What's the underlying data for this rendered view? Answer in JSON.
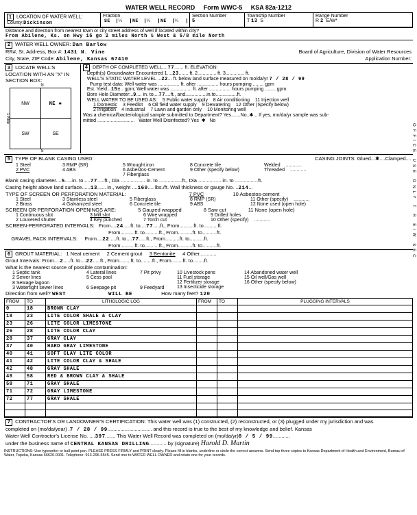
{
  "form": {
    "title": "WATER WELL RECORD",
    "form_no": "Form WWC-5",
    "ksa": "KSA 82a-1212"
  },
  "loc": {
    "county": "Dickinson",
    "fraction": [
      "SE",
      "¼",
      "NE",
      "¼",
      "NE",
      "¼"
    ],
    "section": "5",
    "township": "13",
    "township_dir": "S",
    "range": "2",
    "range_dir": "E/W*",
    "distance": "From Abilene, Ks. on Hwy 15 go 2 miles North ½ West & 5/8 mile North"
  },
  "owner": {
    "name": "Dan Barlow",
    "address": "1431 N. Vine",
    "city": "Abilene, Kansas  67410",
    "board": "Board of Agriculture, Division of Water Resources",
    "app_no": ""
  },
  "section3": {
    "mark": "NE ✱",
    "n": "N",
    "s": "S",
    "mile_label": "1 Mile"
  },
  "depth": {
    "completed": "77",
    "groundwater": "23",
    "gw_ft": "3",
    "static": "22",
    "static_date": "7 / 28 / 99",
    "est_yield": "15±",
    "bore_dia": "9",
    "bore_to": "77"
  },
  "well_use": [
    "1 Domestic",
    "3 Feedlot",
    "6 Oil field water supply",
    "9 Dewatering",
    "12 Other (Specify below)",
    "2 Irrigation",
    "4 Industrial",
    "7 Lawn and garden only",
    "10 Monitoring well"
  ],
  "well_use_header": [
    "5 Public water supply",
    "8 Air conditioning",
    "11 Injection well"
  ],
  "chem_sample": {
    "submitted": "No",
    "disinfected": "Yes ✱"
  },
  "casing": {
    "types": [
      "1 Steel",
      "3 RMP (SR)",
      "5 Wrought iron",
      "8 Concrete tile",
      "2 PVC",
      "4 ABS",
      "6 Asbestos-Cement",
      "9 Other (specify below)",
      "",
      "",
      "7 Fiberglass",
      ""
    ],
    "joints": "Glued...✱....Clamped",
    "joints2": "Welded",
    "joints3": "Threaded",
    "blank_dia": "5",
    "blank_to": "77",
    "height_above": "13",
    "weight": "160",
    "gauge": "214"
  },
  "screen_mat": [
    "1 Steel",
    "3 Stainless steel",
    "5 Fiberglass",
    "8 RMP (SR)",
    "11 Other (specify)",
    "2 Brass",
    "4 Galvanized steel",
    "6 Concrete tile",
    "9 ABS",
    "12 None used (open hole)"
  ],
  "screen_mat_header": [
    "7 PVC",
    "10 Asbestos-cement"
  ],
  "openings": [
    "1 Continuous slot",
    "3 Mill slot",
    "2 Louvered shutter",
    "4 Key punched"
  ],
  "openings2": [
    "5 Gauzed wrapped",
    "8 Saw cut",
    "11 None (open hole)",
    "6 Wire wrapped",
    "9 Drilled holes",
    "",
    "7 Torch cut",
    "10 Other (specify)",
    ""
  ],
  "perforated": {
    "from1": "24",
    "to1": "77",
    "gp_from": "22",
    "gp_to": "77"
  },
  "grout": {
    "types": [
      "1 Neat cement",
      "2 Cement grout",
      "3 Bentonite",
      "4 Other"
    ],
    "from": "2",
    "to": "22"
  },
  "contam": [
    "1 Septic tank",
    "4 Lateral lines",
    "7 Pit privy",
    "2 Sewer lines",
    "5 Cess pool",
    "8 Sewage lagoon",
    "3 Watertight sewer lines",
    "6 Seepage pit",
    "9 Feedyard"
  ],
  "contam2": [
    "10 Livestock pens",
    "14 Abandoned water well",
    "11 Fuel storage",
    "15 Oil well/Gas well",
    "12 Fertilizer storage",
    "16 Other (specify below)",
    "13 Insecticide storage",
    ""
  ],
  "direction": "WEST",
  "direction2": "WILL BE",
  "direction_feet": "120",
  "log": [
    {
      "from": "0",
      "to": "18",
      "desc": "BROWN CLAY"
    },
    {
      "from": "18",
      "to": "23",
      "desc": "LITE COLOR SHALE & CLAY"
    },
    {
      "from": "23",
      "to": "26",
      "desc": "LITE COLOR LIMESTONE"
    },
    {
      "from": "26",
      "to": "28",
      "desc": "LITE COLOR CLAY"
    },
    {
      "from": "28",
      "to": "37",
      "desc": "GRAY CLAY"
    },
    {
      "from": "37",
      "to": "40",
      "desc": "HARD GRAY LIMESTONE"
    },
    {
      "from": "40",
      "to": "41",
      "desc": "SOFT CLAY LITE COLOR"
    },
    {
      "from": "41",
      "to": "42",
      "desc": "LITE COLOR CLAY & SHALE"
    },
    {
      "from": "42",
      "to": "48",
      "desc": "GRAY SHALE"
    },
    {
      "from": "48",
      "to": "58",
      "desc": "RED & BROWN CLAY & SHALE"
    },
    {
      "from": "58",
      "to": "71",
      "desc": "GRAY SHALE"
    },
    {
      "from": "71",
      "to": "72",
      "desc": "GRAY LIMESTONE"
    },
    {
      "from": "72",
      "to": "77",
      "desc": "GRAY SHALE"
    }
  ],
  "cert": {
    "date": "7 / 28 / 99",
    "lic_no": "397",
    "record_date": "8 / 5 / 99",
    "business": "CENTRAL KANSAS DRILLING",
    "signature": "Harold D. Martin"
  },
  "instructions": "INSTRUCTIONS: Use typewriter or ball point pen. PLEASE PRESS FIRMLY and PRINT clearly. Please fill in blanks, underline or circle the correct answers. Send top three copies to Kansas Department of Health and Environment, Bureau of Water, Topeka, Kansas 66620-0001. Telephone: 913-296-5545. Send one to WATER WELL OWNER and retain one for your records.",
  "side": "OFFICE USE ONLY       T       R       E/W       SEC"
}
